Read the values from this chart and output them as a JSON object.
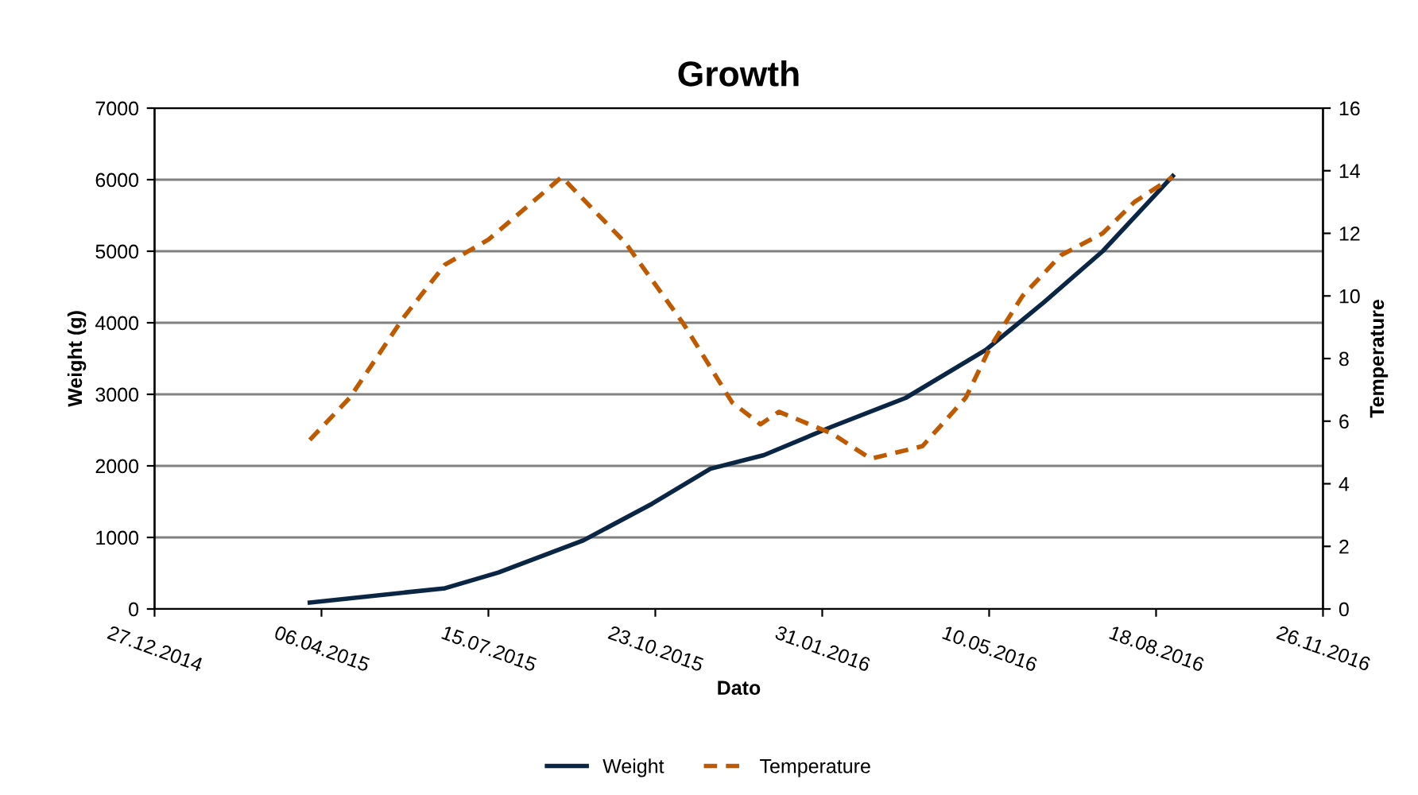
{
  "chart_data": {
    "type": "line",
    "title": "Growth",
    "xlabel": "Dato",
    "ylabel": "Weight (g)",
    "y2label": "Temperature",
    "xlim": [
      "2014-12-27",
      "2016-11-26"
    ],
    "xticks": [
      {
        "value": "2014-12-27",
        "label": "27.12.2014"
      },
      {
        "value": "2015-04-06",
        "label": "06.04.2015"
      },
      {
        "value": "2015-07-15",
        "label": "15.07.2015"
      },
      {
        "value": "2015-10-23",
        "label": "23.10.2015"
      },
      {
        "value": "2016-01-31",
        "label": "31.01.2016"
      },
      {
        "value": "2016-05-10",
        "label": "10.05.2016"
      },
      {
        "value": "2016-08-18",
        "label": "18.08.2016"
      },
      {
        "value": "2016-11-26",
        "label": "26.11.2016"
      }
    ],
    "ylim": [
      0,
      7000
    ],
    "yticks": [
      0,
      1000,
      2000,
      3000,
      4000,
      5000,
      6000,
      7000
    ],
    "y2lim": [
      0,
      16
    ],
    "y2ticks": [
      0,
      2,
      4,
      6,
      8,
      10,
      12,
      14,
      16
    ],
    "grid": "y",
    "legend": "bottom",
    "marker": "none",
    "series": [
      {
        "name": "Weight",
        "color": "#0b2545",
        "line_style": "solid",
        "x": [
          "2015-03-30",
          "2015-06-19",
          "2015-07-21",
          "2015-09-10",
          "2015-10-21",
          "2015-11-25",
          "2015-12-27",
          "2016-02-06",
          "2016-03-21",
          "2016-05-08",
          "2016-06-12",
          "2016-07-17",
          "2016-08-28"
        ],
        "values": [
          90,
          290,
          510,
          960,
          1470,
          1960,
          2150,
          2550,
          2950,
          3620,
          4290,
          5000,
          6050
        ]
      },
      {
        "name": "Temperature",
        "color": "#c05a00",
        "line_style": "dashed",
        "axis": "y2",
        "x": [
          "2015-03-30",
          "2015-04-23",
          "2015-05-25",
          "2015-06-19",
          "2015-07-15",
          "2015-08-28",
          "2015-10-05",
          "2015-11-09",
          "2015-12-08",
          "2015-12-25",
          "2016-01-05",
          "2016-02-06",
          "2016-02-29",
          "2016-03-31",
          "2016-04-26",
          "2016-05-11",
          "2016-05-30",
          "2016-06-22",
          "2016-07-17",
          "2016-08-05",
          "2016-08-28"
        ],
        "values": [
          5.4,
          6.75,
          9.3,
          11.0,
          11.8,
          13.8,
          11.7,
          9.1,
          6.6,
          5.9,
          6.3,
          5.6,
          4.8,
          5.2,
          6.75,
          8.4,
          10.0,
          11.3,
          12.0,
          13.0,
          13.8
        ]
      }
    ]
  }
}
